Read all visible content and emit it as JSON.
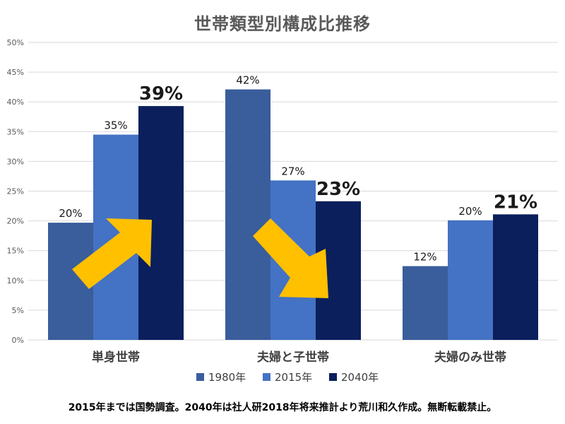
{
  "colors": {
    "series_1980": "#3A5D9C",
    "series_2015": "#4472C4",
    "series_2040": "#0B1F5C",
    "arrow": "#FFC000",
    "grid": "#D9D9D9",
    "axis_text": "#595959"
  },
  "chart_data": {
    "type": "bar",
    "title": "世帯類型別構成比推移",
    "categories": [
      "単身世帯",
      "夫婦と子世帯",
      "夫婦のみ世帯"
    ],
    "series": [
      {
        "name": "1980年",
        "values": [
          20,
          42,
          12
        ],
        "labels": [
          "20%",
          "42%",
          "12%"
        ],
        "color_key": "series_1980",
        "label_bold": false
      },
      {
        "name": "2015年",
        "values": [
          35,
          27,
          20
        ],
        "labels": [
          "35%",
          "27%",
          "20%"
        ],
        "color_key": "series_2015",
        "label_bold": false
      },
      {
        "name": "2040年",
        "values": [
          39,
          23,
          21
        ],
        "labels": [
          "39%",
          "23%",
          "21%"
        ],
        "color_key": "series_2040",
        "label_bold": true
      }
    ],
    "precise_values": {
      "1980年": [
        19.7,
        42.1,
        12.4
      ],
      "2015年": [
        34.5,
        26.8,
        20.1
      ],
      "2040年": [
        39.3,
        23.3,
        21.1
      ]
    },
    "y_ticks": [
      "0%",
      "5%",
      "10%",
      "15%",
      "20%",
      "25%",
      "30%",
      "35%",
      "40%",
      "45%",
      "50%"
    ],
    "ylim": [
      0,
      50
    ],
    "grid": true,
    "legend_position": "bottom",
    "annotations": [
      {
        "type": "arrow",
        "direction": "up",
        "category": "単身世帯"
      },
      {
        "type": "arrow",
        "direction": "down",
        "category": "夫婦と子世帯"
      }
    ]
  },
  "footnote": "2015年までは国勢調査。2040年は社人研2018年将来推計より荒川和久作成。無断転載禁止。"
}
